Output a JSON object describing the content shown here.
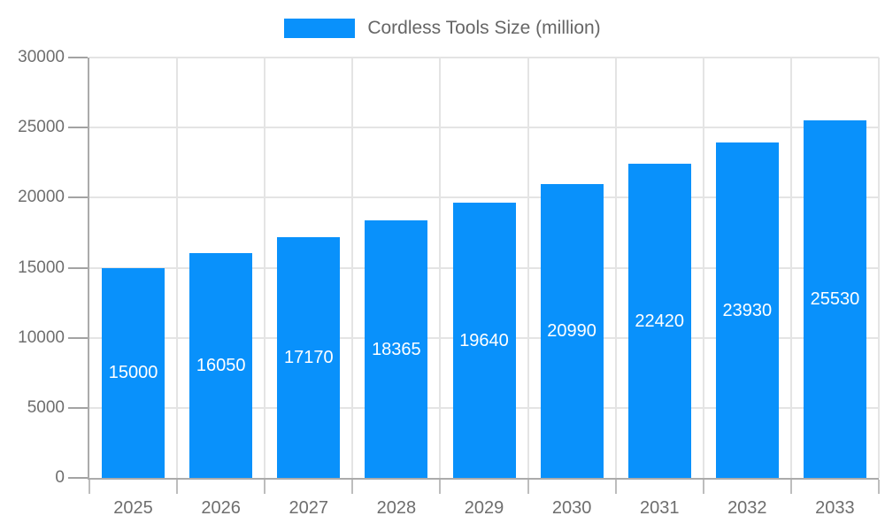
{
  "chart_data": {
    "type": "bar",
    "title": "Cordless Tools Size (million)",
    "categories": [
      "2025",
      "2026",
      "2027",
      "2028",
      "2029",
      "2030",
      "2031",
      "2032",
      "2033"
    ],
    "values": [
      15000,
      16050,
      17170,
      18365,
      19640,
      20990,
      22420,
      23930,
      25530
    ],
    "xlabel": "",
    "ylabel": "",
    "ylim": [
      0,
      30000
    ],
    "yticks": [
      0,
      5000,
      10000,
      15000,
      20000,
      25000,
      30000
    ],
    "grid": true,
    "legend_position": "top",
    "bar_color": "#0991fb",
    "bar_label_color": "#ffffff"
  },
  "legend": {
    "label": "Cordless Tools Size (million)"
  },
  "colors": {
    "axis_text": "#6e6e6e",
    "grid_line": "#e4e4e4",
    "axis_line": "#ababab",
    "tick_mark_y": "#a3a3a3",
    "tick_mark_x": "#bdbdbd",
    "background": "#ffffff"
  }
}
